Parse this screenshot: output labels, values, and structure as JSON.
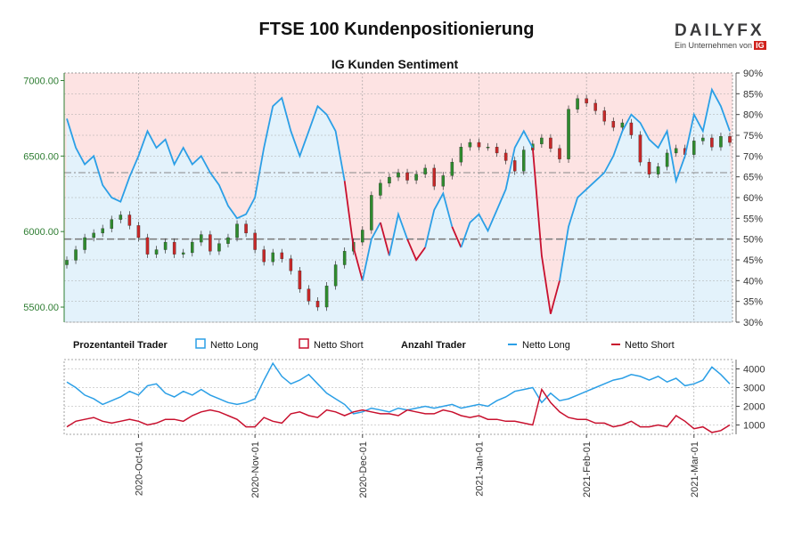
{
  "header": {
    "title": "FTSE 100 Kundenpositionierung",
    "subtitle": "IG Kunden Sentiment",
    "brand": "DAILYFX",
    "brand_tagline": "Ein Unternehmen von",
    "brand_parent": "IG"
  },
  "colors": {
    "long": "#2b9fe6",
    "short": "#c8102e",
    "candle_up": "#2e8b2e",
    "candle_down": "#c62828",
    "bg_red": "#fde3e3",
    "bg_blue": "#e3f2fb",
    "price_axis": "#2e7d32"
  },
  "legend": {
    "pct_header": "Prozentanteil Trader",
    "pct_long": "Netto Long",
    "pct_short": "Netto Short",
    "count_header": "Anzahl Trader",
    "count_long": "Netto Long",
    "count_short": "Netto Short"
  },
  "chart_data": [
    {
      "type": "line",
      "name": "FTSE 100 Kundenpositionierung",
      "price_ticks": [
        "7000.00",
        "6500.00",
        "6000.00",
        "5500.00"
      ],
      "price_range": [
        5400,
        7050
      ],
      "pct_ticks": [
        "90%",
        "85%",
        "80%",
        "75%",
        "70%",
        "65%",
        "60%",
        "55%",
        "50%",
        "45%",
        "40%",
        "35%",
        "30%"
      ],
      "pct_range": [
        30,
        90
      ],
      "grid": true,
      "price_candles_close": [
        5810,
        5880,
        5960,
        5990,
        6020,
        6080,
        6110,
        6040,
        5960,
        5850,
        5880,
        5930,
        5850,
        5860,
        5930,
        5980,
        5870,
        5920,
        5960,
        6050,
        5990,
        5880,
        5800,
        5860,
        5820,
        5740,
        5620,
        5540,
        5500,
        5640,
        5780,
        5870,
        5930,
        6010,
        6240,
        6320,
        6360,
        6390,
        6340,
        6380,
        6420,
        6300,
        6370,
        6460,
        6560,
        6590,
        6560,
        6560,
        6520,
        6470,
        6400,
        6540,
        6580,
        6620,
        6550,
        6480,
        6810,
        6880,
        6850,
        6800,
        6730,
        6690,
        6720,
        6640,
        6460,
        6380,
        6430,
        6520,
        6550,
        6510,
        6600,
        6620,
        6560,
        6630,
        6590
      ],
      "pct_long": [
        79,
        72,
        68,
        70,
        63,
        60,
        59,
        65,
        70,
        76,
        72,
        74,
        68,
        72,
        68,
        70,
        66,
        63,
        58,
        55,
        56,
        60,
        72,
        82,
        84,
        76,
        70,
        76,
        82,
        80,
        76,
        64,
        48,
        40,
        50,
        54,
        46,
        56,
        50,
        45,
        48,
        57,
        61,
        53,
        48,
        54,
        56,
        52,
        57,
        62,
        72,
        76,
        72,
        46,
        32,
        40,
        53,
        60,
        62,
        64,
        66,
        70,
        76,
        80,
        78,
        74,
        72,
        76,
        64,
        70,
        80,
        76,
        86,
        82,
        76
      ],
      "pct_short": [
        21,
        28,
        32,
        30,
        37,
        40,
        41,
        35,
        30,
        24,
        28,
        26,
        32,
        28,
        32,
        30,
        34,
        37,
        42,
        45,
        44,
        40,
        28,
        18,
        16,
        24,
        30,
        24,
        18,
        20,
        24,
        36,
        52,
        60,
        50,
        46,
        54,
        44,
        50,
        55,
        52,
        43,
        39,
        47,
        52,
        46,
        44,
        48,
        43,
        38,
        28,
        24,
        28,
        54,
        68,
        60,
        47,
        40,
        38,
        36,
        34,
        30,
        24,
        20,
        22,
        26,
        28,
        24,
        36,
        30,
        20,
        24,
        14,
        18,
        24
      ],
      "x_tick_labels": [
        "2020-Oct-01",
        "2020-Nov-01",
        "2020-Dec-01",
        "2021-Jan-01",
        "2021-Feb-01",
        "2021-Mar-01"
      ]
    },
    {
      "type": "line",
      "name": "Anzahl Trader",
      "count_ticks": [
        "4000",
        "3000",
        "2000",
        "1000"
      ],
      "count_range": [
        500,
        4500
      ],
      "grid": true,
      "count_long": [
        3300,
        3000,
        2600,
        2400,
        2100,
        2300,
        2500,
        2800,
        2600,
        3100,
        3200,
        2700,
        2500,
        2800,
        2600,
        2900,
        2600,
        2400,
        2200,
        2100,
        2200,
        2400,
        3400,
        4300,
        3600,
        3200,
        3400,
        3700,
        3200,
        2700,
        2400,
        2100,
        1600,
        1700,
        1900,
        1800,
        1700,
        1900,
        1800,
        1900,
        2000,
        1900,
        2000,
        2100,
        1900,
        2000,
        2100,
        2000,
        2300,
        2500,
        2800,
        2900,
        3000,
        2200,
        2700,
        2300,
        2400,
        2600,
        2800,
        3000,
        3200,
        3400,
        3500,
        3700,
        3600,
        3400,
        3600,
        3300,
        3500,
        3100,
        3200,
        3400,
        4100,
        3700,
        3200
      ],
      "count_short": [
        900,
        1200,
        1300,
        1400,
        1200,
        1100,
        1200,
        1300,
        1200,
        1000,
        1100,
        1300,
        1300,
        1200,
        1500,
        1700,
        1800,
        1700,
        1500,
        1300,
        900,
        900,
        1400,
        1200,
        1100,
        1600,
        1700,
        1500,
        1400,
        1800,
        1700,
        1500,
        1700,
        1800,
        1700,
        1600,
        1600,
        1500,
        1800,
        1700,
        1600,
        1600,
        1800,
        1700,
        1500,
        1400,
        1500,
        1300,
        1300,
        1200,
        1200,
        1100,
        1000,
        2900,
        2200,
        1700,
        1400,
        1300,
        1300,
        1100,
        1100,
        900,
        1000,
        1200,
        900,
        900,
        1000,
        900,
        1500,
        1200,
        800,
        900,
        600,
        700,
        1000
      ]
    }
  ]
}
